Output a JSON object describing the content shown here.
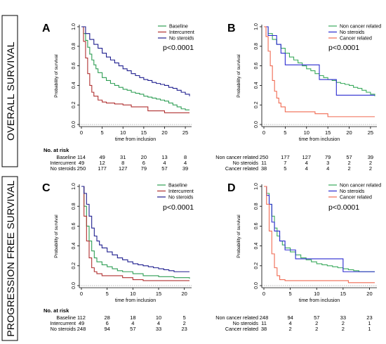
{
  "row_labels": [
    "OVERALL SURVIVAL",
    "PROGRESSION FREE SURVIVAL"
  ],
  "chart_data": [
    {
      "panel": "A",
      "type": "line",
      "xlabel": "time from inclusion",
      "ylabel": "Probability of survival",
      "xlim": [
        0,
        26
      ],
      "ylim": [
        0,
        1
      ],
      "xticks": [
        0,
        5,
        10,
        15,
        20,
        25
      ],
      "yticks": [
        0.0,
        0.2,
        0.4,
        0.6,
        0.8,
        1.0
      ],
      "pvalue": "p<0.0001",
      "legend_position": "top-right",
      "series": [
        {
          "name": "Baseline",
          "color": "#2e9e54",
          "x": [
            0,
            0.5,
            1,
            1.5,
            2,
            2.5,
            3,
            3.5,
            4,
            5,
            6,
            7,
            8,
            9,
            10,
            11,
            12,
            13,
            14,
            15,
            16,
            17,
            18,
            19,
            20,
            21,
            22,
            23,
            24,
            25,
            26
          ],
          "y": [
            1.0,
            0.93,
            0.86,
            0.79,
            0.72,
            0.66,
            0.61,
            0.57,
            0.53,
            0.48,
            0.45,
            0.42,
            0.4,
            0.38,
            0.36,
            0.35,
            0.33,
            0.32,
            0.31,
            0.29,
            0.28,
            0.27,
            0.26,
            0.25,
            0.24,
            0.22,
            0.2,
            0.18,
            0.16,
            0.15,
            0.15
          ]
        },
        {
          "name": "Intercurrent",
          "color": "#b03030",
          "x": [
            0,
            0.5,
            1,
            1.5,
            2,
            2.5,
            3,
            4,
            5,
            6,
            8,
            10,
            12,
            15,
            16,
            18,
            20,
            22,
            24,
            26
          ],
          "y": [
            1.0,
            0.85,
            0.68,
            0.52,
            0.4,
            0.33,
            0.29,
            0.25,
            0.23,
            0.22,
            0.21,
            0.2,
            0.18,
            0.18,
            0.14,
            0.14,
            0.12,
            0.12,
            0.12,
            0.12
          ]
        },
        {
          "name": "No steroids",
          "color": "#1f1f8f",
          "x": [
            0,
            1,
            2,
            3,
            4,
            5,
            6,
            7,
            8,
            9,
            10,
            11,
            12,
            13,
            14,
            15,
            16,
            17,
            18,
            19,
            20,
            21,
            22,
            23,
            24,
            25,
            26
          ],
          "y": [
            1.0,
            0.93,
            0.87,
            0.82,
            0.78,
            0.73,
            0.69,
            0.66,
            0.63,
            0.6,
            0.57,
            0.55,
            0.52,
            0.5,
            0.48,
            0.46,
            0.45,
            0.43,
            0.42,
            0.41,
            0.4,
            0.38,
            0.37,
            0.35,
            0.33,
            0.31,
            0.29
          ]
        }
      ],
      "risk_table": {
        "title": "No. at risk",
        "columns_x": [
          0,
          5,
          10,
          15,
          20,
          25
        ],
        "rows": [
          {
            "label": "Baseline",
            "values": [
              "114",
              "49",
              "31",
              "20",
              "13",
              "8"
            ]
          },
          {
            "label": "Intercurrent",
            "values": [
              "49",
              "12",
              "8",
              "6",
              "4",
              "4"
            ]
          },
          {
            "label": "No steroids",
            "values": [
              "250",
              "177",
              "127",
              "79",
              "57",
              "39"
            ]
          }
        ]
      }
    },
    {
      "panel": "B",
      "type": "line",
      "xlabel": "time from inclusion",
      "ylabel": "Probability of survival",
      "xlim": [
        0,
        26
      ],
      "ylim": [
        0,
        1
      ],
      "xticks": [
        0,
        5,
        10,
        15,
        20,
        25
      ],
      "yticks": [
        0.0,
        0.2,
        0.4,
        0.6,
        0.8,
        1.0
      ],
      "pvalue": "p<0.0001",
      "legend_position": "top-right",
      "series": [
        {
          "name": "Non cancer related",
          "color": "#3aaa5c",
          "x": [
            0,
            1,
            2,
            3,
            4,
            5,
            6,
            7,
            8,
            9,
            10,
            11,
            12,
            13,
            14,
            15,
            16,
            17,
            18,
            19,
            20,
            21,
            22,
            23,
            24,
            25,
            26
          ],
          "y": [
            1.0,
            0.93,
            0.87,
            0.82,
            0.78,
            0.73,
            0.69,
            0.66,
            0.63,
            0.6,
            0.57,
            0.55,
            0.52,
            0.5,
            0.48,
            0.46,
            0.45,
            0.43,
            0.42,
            0.41,
            0.4,
            0.38,
            0.37,
            0.35,
            0.33,
            0.31,
            0.29
          ]
        },
        {
          "name": "No steroids",
          "color": "#2a2ad0",
          "x": [
            0,
            0.5,
            1,
            2,
            3,
            4,
            5,
            8,
            10,
            13,
            17,
            26
          ],
          "y": [
            1.0,
            1.0,
            0.91,
            0.91,
            0.82,
            0.73,
            0.61,
            0.61,
            0.61,
            0.46,
            0.3,
            0.3
          ]
        },
        {
          "name": "Cancer related",
          "color": "#f06a52",
          "x": [
            0,
            0.5,
            1,
            1.5,
            2,
            2.5,
            3,
            3.5,
            4,
            5,
            6,
            8,
            10,
            12,
            15,
            20,
            26
          ],
          "y": [
            1.0,
            0.9,
            0.75,
            0.6,
            0.45,
            0.34,
            0.27,
            0.22,
            0.18,
            0.13,
            0.13,
            0.13,
            0.13,
            0.11,
            0.08,
            0.08,
            0.08
          ]
        }
      ],
      "risk_table": {
        "title": "",
        "columns_x": [
          0,
          5,
          10,
          15,
          20,
          25
        ],
        "rows": [
          {
            "label": "Non cancer related",
            "values": [
              "250",
              "177",
              "127",
              "79",
              "57",
              "39"
            ]
          },
          {
            "label": "No steroids",
            "values": [
              "11",
              "7",
              "4",
              "3",
              "2",
              "2"
            ]
          },
          {
            "label": "Cancer related",
            "values": [
              "38",
              "5",
              "4",
              "4",
              "2",
              "2"
            ]
          }
        ]
      }
    },
    {
      "panel": "C",
      "type": "line",
      "xlabel": "time from inclusion",
      "ylabel": "Probability of survival",
      "xlim": [
        0,
        21
      ],
      "ylim": [
        0,
        1
      ],
      "xticks": [
        0,
        5,
        10,
        15,
        20
      ],
      "yticks": [
        0.0,
        0.2,
        0.4,
        0.6,
        0.8,
        1.0
      ],
      "pvalue": "p<0.0001",
      "legend_position": "top-right",
      "series": [
        {
          "name": "Baseline",
          "color": "#2e9e54",
          "x": [
            0,
            0.5,
            1,
            1.5,
            2,
            2.5,
            3,
            4,
            5,
            6,
            7,
            8,
            10,
            12,
            15,
            18,
            21
          ],
          "y": [
            1.0,
            0.8,
            0.6,
            0.45,
            0.35,
            0.28,
            0.24,
            0.21,
            0.19,
            0.17,
            0.15,
            0.14,
            0.12,
            0.1,
            0.09,
            0.08,
            0.07
          ]
        },
        {
          "name": "Intercurrent",
          "color": "#b03030",
          "x": [
            0,
            0.5,
            1,
            1.5,
            2,
            2.5,
            3,
            4,
            6,
            8,
            10,
            12,
            16,
            21
          ],
          "y": [
            1.0,
            0.7,
            0.45,
            0.28,
            0.18,
            0.14,
            0.12,
            0.1,
            0.1,
            0.08,
            0.06,
            0.05,
            0.05,
            0.05
          ]
        },
        {
          "name": "No steroids",
          "color": "#1f1f8f",
          "x": [
            0,
            0.5,
            1,
            1.5,
            2,
            2.5,
            3,
            3.5,
            4,
            5,
            6,
            7,
            8,
            9,
            10,
            11,
            12,
            13,
            14,
            15,
            16,
            17,
            18,
            19,
            21
          ],
          "y": [
            1.0,
            0.93,
            0.82,
            0.7,
            0.58,
            0.5,
            0.45,
            0.41,
            0.38,
            0.34,
            0.31,
            0.28,
            0.26,
            0.24,
            0.22,
            0.21,
            0.2,
            0.19,
            0.18,
            0.17,
            0.16,
            0.15,
            0.14,
            0.14,
            0.14
          ]
        }
      ],
      "risk_table": {
        "title": "No. at risk",
        "columns_x": [
          0,
          5,
          10,
          15,
          20
        ],
        "rows": [
          {
            "label": "Baseline",
            "values": [
              "112",
              "28",
              "18",
              "10",
              "5"
            ]
          },
          {
            "label": "Intercurrent",
            "values": [
              "49",
              "6",
              "4",
              "4",
              "2"
            ]
          },
          {
            "label": "No steroids",
            "values": [
              "248",
              "94",
              "57",
              "33",
              "23"
            ]
          }
        ]
      }
    },
    {
      "panel": "D",
      "type": "line",
      "xlabel": "time from inclusion",
      "ylabel": "Probability of survival",
      "xlim": [
        0,
        21
      ],
      "ylim": [
        0,
        1
      ],
      "xticks": [
        0,
        5,
        10,
        15,
        20
      ],
      "yticks": [
        0.0,
        0.2,
        0.4,
        0.6,
        0.8,
        1.0
      ],
      "pvalue": "p<0.0001",
      "legend_position": "top-right",
      "series": [
        {
          "name": "Non cancer related",
          "color": "#3aaa5c",
          "x": [
            0,
            0.5,
            1,
            1.5,
            2,
            2.5,
            3,
            3.5,
            4,
            5,
            6,
            7,
            8,
            9,
            10,
            11,
            12,
            13,
            14,
            15,
            16,
            17,
            18,
            19,
            21
          ],
          "y": [
            1.0,
            0.93,
            0.82,
            0.7,
            0.58,
            0.5,
            0.45,
            0.41,
            0.38,
            0.34,
            0.31,
            0.28,
            0.26,
            0.24,
            0.22,
            0.21,
            0.2,
            0.19,
            0.18,
            0.17,
            0.16,
            0.15,
            0.14,
            0.14,
            0.14
          ]
        },
        {
          "name": "No steroids",
          "color": "#2a2ad0",
          "x": [
            0,
            0.5,
            1,
            1.5,
            2,
            3,
            4,
            6,
            10,
            15,
            21
          ],
          "y": [
            1.0,
            0.91,
            0.82,
            0.64,
            0.55,
            0.45,
            0.36,
            0.27,
            0.27,
            0.14,
            0.14
          ]
        },
        {
          "name": "Cancer related",
          "color": "#f06a52",
          "x": [
            0,
            0.5,
            1,
            1.5,
            2,
            2.5,
            3,
            4,
            6,
            10,
            15,
            16,
            21
          ],
          "y": [
            1.0,
            0.82,
            0.55,
            0.32,
            0.18,
            0.1,
            0.06,
            0.05,
            0.05,
            0.05,
            0.05,
            0.03,
            0.03
          ]
        }
      ],
      "risk_table": {
        "title": "",
        "columns_x": [
          0,
          5,
          10,
          15,
          20
        ],
        "rows": [
          {
            "label": "Non cancer related",
            "values": [
              "248",
              "94",
              "57",
              "33",
              "23"
            ]
          },
          {
            "label": "No steroids",
            "values": [
              "11",
              "4",
              "2",
              "2",
              "1"
            ]
          },
          {
            "label": "Cancer related",
            "values": [
              "38",
              "2",
              "2",
              "2",
              "1"
            ]
          }
        ]
      }
    }
  ]
}
